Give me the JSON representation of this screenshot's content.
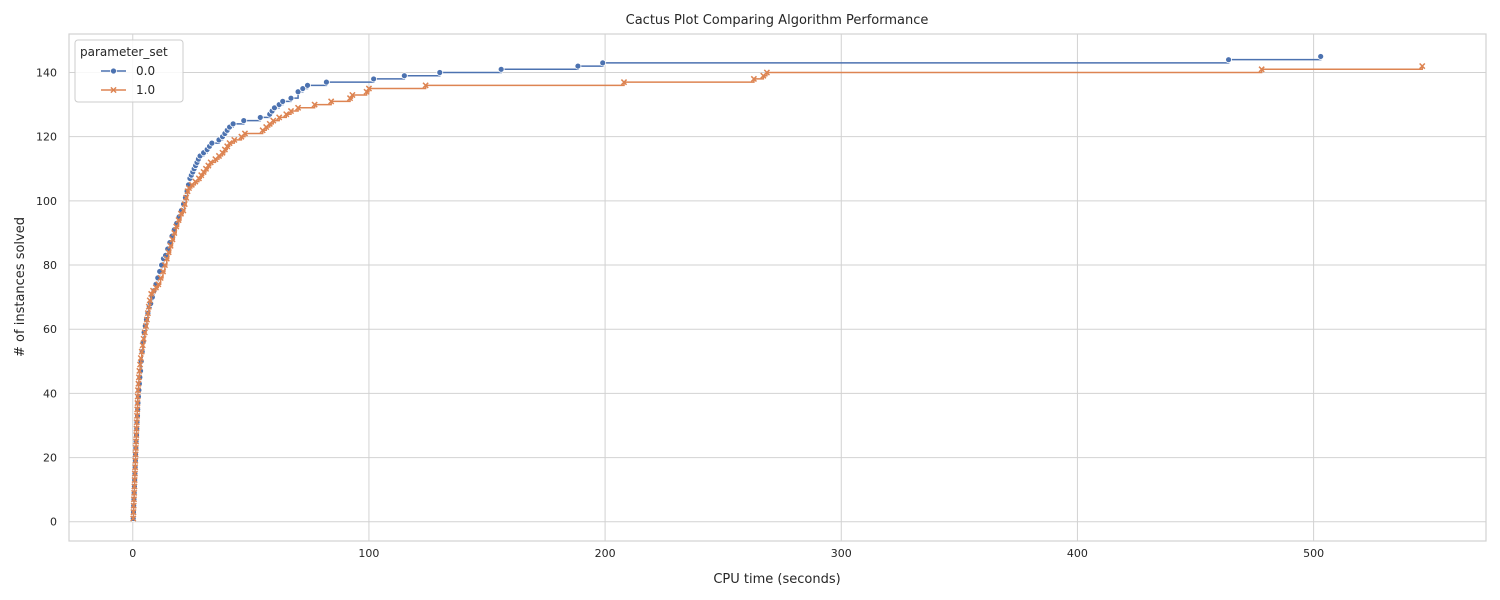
{
  "chart_data": {
    "type": "line",
    "title": "Cactus Plot Comparing Algorithm Performance",
    "xlabel": "CPU time (seconds)",
    "ylabel": "# of instances solved",
    "xlim": [
      -27,
      573
    ],
    "ylim": [
      -6,
      152
    ],
    "xticks": [
      0,
      100,
      200,
      300,
      400,
      500
    ],
    "yticks": [
      0,
      20,
      40,
      60,
      80,
      100,
      120,
      140
    ],
    "grid": true,
    "step": "post",
    "legend": {
      "title": "parameter_set",
      "position": "top-left"
    },
    "series": [
      {
        "name": "0.0",
        "color": "#4c72b0",
        "marker": "circle",
        "points": [
          [
            0.2,
            1
          ],
          [
            0.3,
            3
          ],
          [
            0.4,
            5
          ],
          [
            0.5,
            7
          ],
          [
            0.6,
            9
          ],
          [
            0.7,
            11
          ],
          [
            0.8,
            13
          ],
          [
            0.9,
            15
          ],
          [
            1.0,
            17
          ],
          [
            1.1,
            19
          ],
          [
            1.2,
            21
          ],
          [
            1.3,
            23
          ],
          [
            1.4,
            25
          ],
          [
            1.6,
            27
          ],
          [
            1.7,
            29
          ],
          [
            1.8,
            31
          ],
          [
            2.0,
            33
          ],
          [
            2.1,
            35
          ],
          [
            2.2,
            37
          ],
          [
            2.4,
            39
          ],
          [
            2.6,
            41
          ],
          [
            2.8,
            43
          ],
          [
            3.0,
            45
          ],
          [
            3.3,
            47
          ],
          [
            3.6,
            50
          ],
          [
            4.0,
            53
          ],
          [
            4.4,
            56
          ],
          [
            4.8,
            59
          ],
          [
            5.3,
            61
          ],
          [
            5.8,
            63
          ],
          [
            6.4,
            65
          ],
          [
            7.0,
            67
          ],
          [
            7.6,
            68
          ],
          [
            8.3,
            70
          ],
          [
            9.0,
            72
          ],
          [
            9.8,
            74
          ],
          [
            10.6,
            76
          ],
          [
            11.4,
            78
          ],
          [
            12.2,
            80
          ],
          [
            13.0,
            82
          ],
          [
            13.9,
            83
          ],
          [
            14.8,
            85
          ],
          [
            15.7,
            87
          ],
          [
            16.6,
            89
          ],
          [
            17.6,
            91
          ],
          [
            18.6,
            93
          ],
          [
            19.6,
            95
          ],
          [
            20.6,
            97
          ],
          [
            21.5,
            99
          ],
          [
            22.3,
            101
          ],
          [
            23.0,
            103
          ],
          [
            23.6,
            105
          ],
          [
            24.2,
            107
          ],
          [
            24.8,
            108
          ],
          [
            25.4,
            109
          ],
          [
            26.0,
            110
          ],
          [
            26.6,
            111
          ],
          [
            27.2,
            112
          ],
          [
            27.8,
            113
          ],
          [
            28.5,
            114
          ],
          [
            30.0,
            115
          ],
          [
            31.5,
            116
          ],
          [
            32.5,
            117
          ],
          [
            33.5,
            118
          ],
          [
            36.5,
            119
          ],
          [
            38.0,
            120
          ],
          [
            39.0,
            121
          ],
          [
            40.0,
            122
          ],
          [
            41.0,
            123
          ],
          [
            42.5,
            124
          ],
          [
            47.0,
            125
          ],
          [
            54.0,
            126
          ],
          [
            58.0,
            127
          ],
          [
            59.0,
            128
          ],
          [
            60.0,
            129
          ],
          [
            62.0,
            130
          ],
          [
            63.5,
            131
          ],
          [
            67.0,
            132
          ],
          [
            70.0,
            134
          ],
          [
            72.0,
            135
          ],
          [
            74.0,
            136
          ],
          [
            82.0,
            137
          ],
          [
            102.0,
            138
          ],
          [
            115.0,
            139
          ],
          [
            130.0,
            140
          ],
          [
            156.0,
            141
          ],
          [
            188.5,
            142
          ],
          [
            199.0,
            143
          ],
          [
            464.0,
            144
          ],
          [
            503.0,
            145
          ]
        ]
      },
      {
        "name": "1.0",
        "color": "#dd8452",
        "marker": "x",
        "points": [
          [
            0.2,
            1
          ],
          [
            0.3,
            3
          ],
          [
            0.4,
            5
          ],
          [
            0.5,
            7
          ],
          [
            0.6,
            9
          ],
          [
            0.7,
            11
          ],
          [
            0.8,
            13
          ],
          [
            0.9,
            15
          ],
          [
            1.0,
            17
          ],
          [
            1.1,
            19
          ],
          [
            1.2,
            21
          ],
          [
            1.3,
            23
          ],
          [
            1.4,
            25
          ],
          [
            1.5,
            27
          ],
          [
            1.6,
            29
          ],
          [
            1.7,
            31
          ],
          [
            1.8,
            33
          ],
          [
            1.9,
            35
          ],
          [
            2.0,
            37
          ],
          [
            2.1,
            39
          ],
          [
            2.2,
            41
          ],
          [
            2.4,
            43
          ],
          [
            2.6,
            45
          ],
          [
            2.8,
            47
          ],
          [
            3.1,
            49
          ],
          [
            3.4,
            51
          ],
          [
            3.8,
            53
          ],
          [
            4.2,
            55
          ],
          [
            4.6,
            57
          ],
          [
            5.1,
            59
          ],
          [
            5.6,
            61
          ],
          [
            6.0,
            63
          ],
          [
            6.4,
            65
          ],
          [
            6.8,
            67
          ],
          [
            7.2,
            69
          ],
          [
            7.8,
            71
          ],
          [
            8.6,
            72
          ],
          [
            9.8,
            73
          ],
          [
            10.8,
            74
          ],
          [
            11.8,
            76
          ],
          [
            12.8,
            78
          ],
          [
            13.6,
            80
          ],
          [
            14.4,
            82
          ],
          [
            15.2,
            84
          ],
          [
            16.0,
            86
          ],
          [
            16.8,
            88
          ],
          [
            17.6,
            90
          ],
          [
            18.4,
            92
          ],
          [
            19.4,
            94
          ],
          [
            20.4,
            96
          ],
          [
            21.4,
            97
          ],
          [
            22.0,
            99
          ],
          [
            22.6,
            101
          ],
          [
            23.2,
            103
          ],
          [
            23.8,
            104
          ],
          [
            25.0,
            105
          ],
          [
            26.5,
            106
          ],
          [
            28.0,
            107
          ],
          [
            29.0,
            108
          ],
          [
            30.0,
            109
          ],
          [
            31.0,
            110
          ],
          [
            32.0,
            111
          ],
          [
            33.0,
            112
          ],
          [
            35.0,
            113
          ],
          [
            36.5,
            114
          ],
          [
            38.0,
            115
          ],
          [
            39.0,
            116
          ],
          [
            40.0,
            117
          ],
          [
            41.0,
            118
          ],
          [
            43.0,
            119
          ],
          [
            46.0,
            120
          ],
          [
            47.5,
            121
          ],
          [
            55.0,
            122
          ],
          [
            56.5,
            123
          ],
          [
            58.0,
            124
          ],
          [
            59.5,
            125
          ],
          [
            62.0,
            126
          ],
          [
            65.0,
            127
          ],
          [
            67.0,
            128
          ],
          [
            70.0,
            129
          ],
          [
            77.0,
            130
          ],
          [
            84.0,
            131
          ],
          [
            92.0,
            132
          ],
          [
            93.0,
            133
          ],
          [
            99.0,
            134
          ],
          [
            100.0,
            135
          ],
          [
            124.0,
            136
          ],
          [
            208.0,
            137
          ],
          [
            263.0,
            138
          ],
          [
            267.0,
            139
          ],
          [
            268.5,
            140
          ],
          [
            478.0,
            141
          ],
          [
            546.0,
            142
          ]
        ]
      }
    ]
  }
}
